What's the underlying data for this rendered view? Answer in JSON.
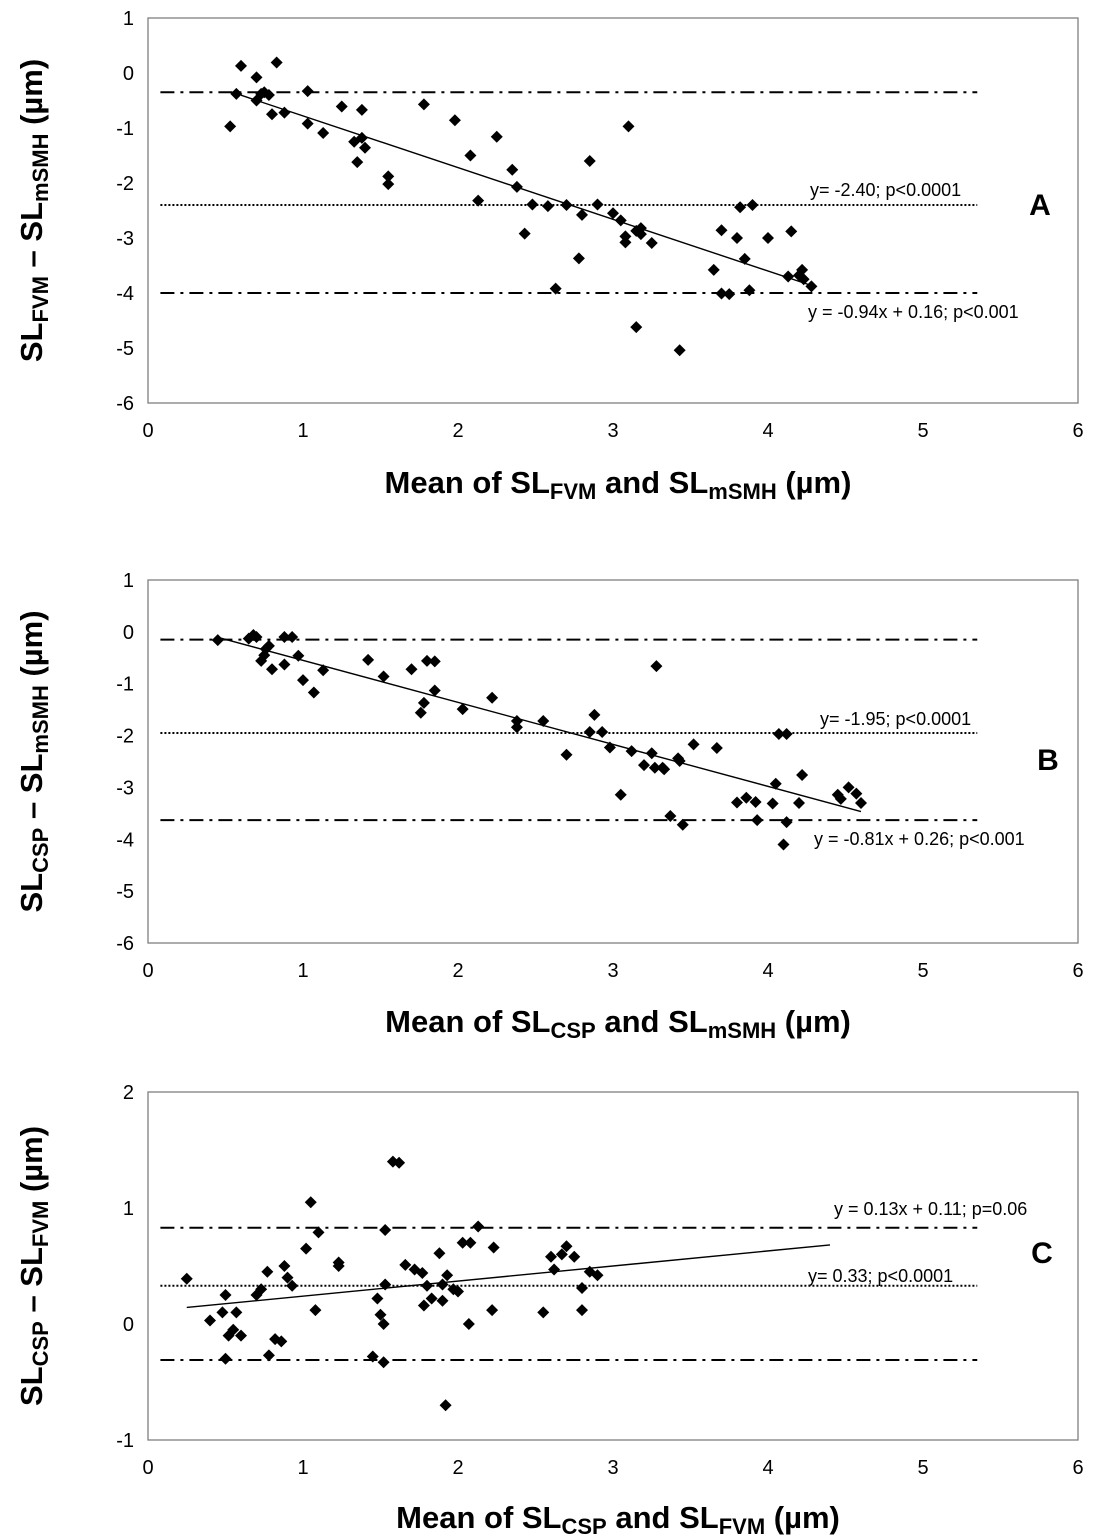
{
  "chart_data": [
    {
      "type": "scatter",
      "panel_label": "A",
      "xlim": [
        0,
        6
      ],
      "ylim": [
        -6,
        1
      ],
      "x_ticks": [
        "0",
        "1",
        "2",
        "3",
        "4",
        "5",
        "6"
      ],
      "y_ticks": [
        "1",
        "0",
        "-1",
        "-2",
        "-3",
        "-4",
        "-5",
        "-6"
      ],
      "xlabel": {
        "pre": "Mean of SL",
        "s1": "FVM",
        "mid": " and SL",
        "s2": "mSMH",
        "post": " (µm)"
      },
      "ylabel": {
        "pre": "SL",
        "s1": "FVM",
        "mid": " – SL",
        "s2": "mSMH",
        "post": " (µm)"
      },
      "mean_line": {
        "y": -2.4,
        "label": "y= -2.40; p<0.0001"
      },
      "limit_lines": [
        -0.35,
        -4.0
      ],
      "regression": {
        "slope": -0.94,
        "intercept": 0.16,
        "x_range": [
          0.6,
          4.3
        ],
        "label": "y = -0.94x + 0.16; p<0.001"
      },
      "points": [
        [
          0.53,
          -0.97
        ],
        [
          0.57,
          -0.38
        ],
        [
          0.6,
          0.13
        ],
        [
          0.7,
          -0.08
        ],
        [
          0.7,
          -0.5
        ],
        [
          0.73,
          -0.38
        ],
        [
          0.75,
          -0.35
        ],
        [
          0.78,
          -0.4
        ],
        [
          0.8,
          -0.75
        ],
        [
          0.83,
          0.19
        ],
        [
          0.88,
          -0.72
        ],
        [
          1.03,
          -0.92
        ],
        [
          1.03,
          -0.33
        ],
        [
          1.13,
          -1.09
        ],
        [
          1.25,
          -0.61
        ],
        [
          1.33,
          -1.25
        ],
        [
          1.35,
          -1.62
        ],
        [
          1.38,
          -1.18
        ],
        [
          1.38,
          -0.67
        ],
        [
          1.4,
          -1.36
        ],
        [
          1.55,
          -1.88
        ],
        [
          1.55,
          -2.02
        ],
        [
          1.78,
          -0.57
        ],
        [
          1.98,
          -0.86
        ],
        [
          2.08,
          -1.5
        ],
        [
          2.13,
          -2.32
        ],
        [
          2.25,
          -1.16
        ],
        [
          2.35,
          -1.76
        ],
        [
          2.38,
          -2.07
        ],
        [
          2.43,
          -2.92
        ],
        [
          2.48,
          -2.39
        ],
        [
          2.58,
          -2.42
        ],
        [
          2.63,
          -3.92
        ],
        [
          2.7,
          -2.4
        ],
        [
          2.78,
          -3.37
        ],
        [
          2.8,
          -2.58
        ],
        [
          2.85,
          -1.6
        ],
        [
          2.9,
          -2.39
        ],
        [
          3.0,
          -2.55
        ],
        [
          3.05,
          -2.68
        ],
        [
          3.08,
          -2.97
        ],
        [
          3.08,
          -3.08
        ],
        [
          3.1,
          -0.97
        ],
        [
          3.15,
          -2.87
        ],
        [
          3.18,
          -2.82
        ],
        [
          3.18,
          -2.93
        ],
        [
          3.15,
          -4.62
        ],
        [
          3.25,
          -3.09
        ],
        [
          3.43,
          -5.04
        ],
        [
          3.65,
          -3.58
        ],
        [
          3.7,
          -2.86
        ],
        [
          3.7,
          -4.01
        ],
        [
          3.75,
          -4.02
        ],
        [
          3.8,
          -3.0
        ],
        [
          3.82,
          -2.44
        ],
        [
          3.85,
          -3.38
        ],
        [
          3.88,
          -3.95
        ],
        [
          3.9,
          -2.4
        ],
        [
          4.0,
          -3.0
        ],
        [
          4.13,
          -3.7
        ],
        [
          4.15,
          -2.88
        ],
        [
          4.2,
          -3.68
        ],
        [
          4.22,
          -3.58
        ],
        [
          4.23,
          -3.75
        ],
        [
          4.28,
          -3.88
        ]
      ]
    },
    {
      "type": "scatter",
      "panel_label": "B",
      "xlim": [
        0,
        6
      ],
      "ylim": [
        -6,
        1
      ],
      "x_ticks": [
        "0",
        "1",
        "2",
        "3",
        "4",
        "5",
        "6"
      ],
      "y_ticks": [
        "1",
        "0",
        "-1",
        "-2",
        "-3",
        "-4",
        "-5",
        "-6"
      ],
      "xlabel": {
        "pre": "Mean of SL",
        "s1": "CSP",
        "mid": " and SL",
        "s2": "mSMH",
        "post": " (µm)"
      },
      "ylabel": {
        "pre": "SL",
        "s1": "CSP",
        "mid": " – SL",
        "s2": "mSMH",
        "post": " (µm)"
      },
      "mean_line": {
        "y": -1.95,
        "label": "y= -1.95; p<0.0001"
      },
      "limit_lines": [
        -0.15,
        -3.63
      ],
      "regression": {
        "slope": -0.81,
        "intercept": 0.26,
        "x_range": [
          0.45,
          4.6
        ],
        "label": "y = -0.81x + 0.26; p<0.001"
      },
      "points": [
        [
          0.45,
          -0.16
        ],
        [
          0.65,
          -0.13
        ],
        [
          0.68,
          -0.06
        ],
        [
          0.7,
          -0.1
        ],
        [
          0.73,
          -0.56
        ],
        [
          0.75,
          -0.45
        ],
        [
          0.76,
          -0.33
        ],
        [
          0.78,
          -0.27
        ],
        [
          0.8,
          -0.72
        ],
        [
          0.88,
          -0.1
        ],
        [
          0.88,
          -0.63
        ],
        [
          0.93,
          -0.1
        ],
        [
          0.97,
          -0.46
        ],
        [
          1.0,
          -0.93
        ],
        [
          1.07,
          -1.17
        ],
        [
          1.13,
          -0.74
        ],
        [
          1.42,
          -0.54
        ],
        [
          1.52,
          -0.86
        ],
        [
          1.7,
          -0.72
        ],
        [
          1.76,
          -1.56
        ],
        [
          1.78,
          -1.37
        ],
        [
          1.8,
          -0.56
        ],
        [
          1.85,
          -1.13
        ],
        [
          1.85,
          -0.57
        ],
        [
          2.03,
          -1.49
        ],
        [
          2.22,
          -1.27
        ],
        [
          2.38,
          -1.72
        ],
        [
          2.38,
          -1.84
        ],
        [
          2.55,
          -1.72
        ],
        [
          2.7,
          -2.37
        ],
        [
          2.85,
          -1.93
        ],
        [
          2.88,
          -1.6
        ],
        [
          2.93,
          -1.93
        ],
        [
          2.98,
          -2.23
        ],
        [
          3.05,
          -3.14
        ],
        [
          3.12,
          -2.3
        ],
        [
          3.2,
          -2.57
        ],
        [
          3.25,
          -2.34
        ],
        [
          3.27,
          -2.62
        ],
        [
          3.28,
          -0.66
        ],
        [
          3.32,
          -2.62
        ],
        [
          3.33,
          -2.65
        ],
        [
          3.37,
          -3.55
        ],
        [
          3.42,
          -2.44
        ],
        [
          3.43,
          -2.49
        ],
        [
          3.45,
          -3.72
        ],
        [
          3.52,
          -2.17
        ],
        [
          3.67,
          -2.24
        ],
        [
          3.8,
          -3.29
        ],
        [
          3.86,
          -3.2
        ],
        [
          3.92,
          -3.28
        ],
        [
          3.93,
          -3.63
        ],
        [
          4.03,
          -3.31
        ],
        [
          4.05,
          -2.93
        ],
        [
          4.07,
          -1.97
        ],
        [
          4.1,
          -4.1
        ],
        [
          4.12,
          -1.97
        ],
        [
          4.12,
          -3.67
        ],
        [
          4.2,
          -3.3
        ],
        [
          4.22,
          -2.76
        ],
        [
          4.45,
          -3.14
        ],
        [
          4.47,
          -3.22
        ],
        [
          4.52,
          -3.0
        ],
        [
          4.57,
          -3.12
        ],
        [
          4.6,
          -3.3
        ]
      ]
    },
    {
      "type": "scatter",
      "panel_label": "C",
      "xlim": [
        0,
        6
      ],
      "ylim": [
        -1,
        2
      ],
      "x_ticks": [
        "0",
        "1",
        "2",
        "3",
        "4",
        "5",
        "6"
      ],
      "y_ticks": [
        "2",
        "1",
        "0",
        "-1"
      ],
      "xlabel": {
        "pre": "Mean of SL",
        "s1": "CSP",
        "mid": " and SL",
        "s2": "FVM",
        "post": " (µm)"
      },
      "ylabel": {
        "pre": "SL",
        "s1": "CSP",
        "mid": " – SL",
        "s2": "FVM",
        "post": " (µm)"
      },
      "mean_line": {
        "y": 0.33,
        "label": "y= 0.33; p<0.0001"
      },
      "limit_lines": [
        0.83,
        -0.31
      ],
      "regression": {
        "slope": 0.13,
        "intercept": 0.11,
        "x_range": [
          0.25,
          4.4
        ],
        "label": "y = 0.13x + 0.11; p=0.06"
      },
      "points": [
        [
          0.25,
          0.39
        ],
        [
          0.4,
          0.03
        ],
        [
          0.48,
          0.1
        ],
        [
          0.5,
          -0.3
        ],
        [
          0.5,
          0.25
        ],
        [
          0.52,
          -0.1
        ],
        [
          0.55,
          -0.05
        ],
        [
          0.57,
          0.1
        ],
        [
          0.6,
          -0.1
        ],
        [
          0.7,
          0.25
        ],
        [
          0.73,
          0.3
        ],
        [
          0.77,
          0.45
        ],
        [
          0.78,
          -0.27
        ],
        [
          0.82,
          -0.13
        ],
        [
          0.86,
          -0.15
        ],
        [
          0.88,
          0.5
        ],
        [
          0.9,
          0.4
        ],
        [
          0.93,
          0.33
        ],
        [
          1.02,
          0.65
        ],
        [
          1.05,
          1.05
        ],
        [
          1.08,
          0.12
        ],
        [
          1.1,
          0.79
        ],
        [
          1.23,
          0.5
        ],
        [
          1.23,
          0.53
        ],
        [
          1.45,
          -0.28
        ],
        [
          1.48,
          0.22
        ],
        [
          1.5,
          0.08
        ],
        [
          1.52,
          -0.33
        ],
        [
          1.52,
          0.0
        ],
        [
          1.53,
          0.34
        ],
        [
          1.53,
          0.81
        ],
        [
          1.58,
          1.4
        ],
        [
          1.62,
          1.39
        ],
        [
          1.66,
          0.51
        ],
        [
          1.72,
          0.47
        ],
        [
          1.77,
          0.44
        ],
        [
          1.78,
          0.16
        ],
        [
          1.8,
          0.33
        ],
        [
          1.83,
          0.22
        ],
        [
          1.88,
          0.61
        ],
        [
          1.9,
          0.2
        ],
        [
          1.9,
          0.34
        ],
        [
          1.92,
          -0.7
        ],
        [
          1.93,
          0.42
        ],
        [
          1.97,
          0.3
        ],
        [
          2.0,
          0.28
        ],
        [
          2.03,
          0.7
        ],
        [
          2.07,
          0.0
        ],
        [
          2.08,
          0.7
        ],
        [
          2.13,
          0.84
        ],
        [
          2.22,
          0.12
        ],
        [
          2.23,
          0.66
        ],
        [
          2.55,
          0.1
        ],
        [
          2.6,
          0.58
        ],
        [
          2.62,
          0.47
        ],
        [
          2.67,
          0.6
        ],
        [
          2.7,
          0.67
        ],
        [
          2.75,
          0.58
        ],
        [
          2.8,
          0.31
        ],
        [
          2.8,
          0.12
        ],
        [
          2.85,
          0.45
        ],
        [
          2.9,
          0.42
        ]
      ]
    }
  ]
}
